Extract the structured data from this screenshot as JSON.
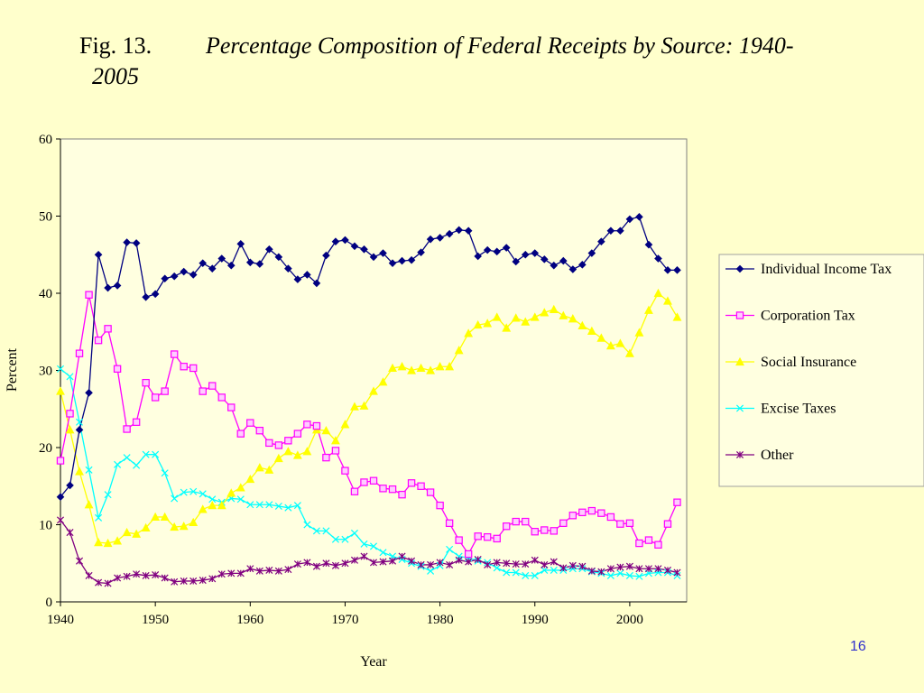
{
  "title": {
    "fig_label": "Fig. 13.",
    "line1": "Percentage Composition of Federal Receipts by Source:  1940-",
    "line2": "2005"
  },
  "slide_number": "16",
  "chart_data": {
    "type": "line",
    "xlabel": "Year",
    "ylabel": "Percent",
    "xlim": [
      1940,
      2006
    ],
    "ylim": [
      0,
      60
    ],
    "x_ticks": [
      1940,
      1950,
      1960,
      1970,
      1980,
      1990,
      2000
    ],
    "y_ticks": [
      0,
      10,
      20,
      30,
      40,
      50,
      60
    ],
    "grid": false,
    "legend_position": "right",
    "x": [
      1940,
      1941,
      1942,
      1943,
      1944,
      1945,
      1946,
      1947,
      1948,
      1949,
      1950,
      1951,
      1952,
      1953,
      1954,
      1955,
      1956,
      1957,
      1958,
      1959,
      1960,
      1961,
      1962,
      1963,
      1964,
      1965,
      1966,
      1967,
      1968,
      1969,
      1970,
      1971,
      1972,
      1973,
      1974,
      1975,
      1976,
      1977,
      1978,
      1979,
      1980,
      1981,
      1982,
      1983,
      1984,
      1985,
      1986,
      1987,
      1988,
      1989,
      1990,
      1991,
      1992,
      1993,
      1994,
      1995,
      1996,
      1997,
      1998,
      1999,
      2000,
      2001,
      2002,
      2003,
      2004,
      2005
    ],
    "series": [
      {
        "name": "Individual Income Tax",
        "color": "#000080",
        "marker": "diamond",
        "values": [
          13.6,
          15.1,
          22.3,
          27.1,
          45.0,
          40.7,
          41.0,
          46.6,
          46.5,
          39.5,
          39.9,
          41.9,
          42.2,
          42.8,
          42.4,
          43.9,
          43.2,
          44.5,
          43.6,
          46.4,
          44.0,
          43.8,
          45.7,
          44.7,
          43.2,
          41.8,
          42.4,
          41.3,
          44.9,
          46.7,
          46.9,
          46.1,
          45.7,
          44.7,
          45.2,
          43.9,
          44.2,
          44.3,
          45.3,
          47.0,
          47.2,
          47.7,
          48.2,
          48.1,
          44.8,
          45.6,
          45.4,
          45.9,
          44.1,
          45.0,
          45.2,
          44.4,
          43.6,
          44.2,
          43.1,
          43.7,
          45.2,
          46.7,
          48.1,
          48.1,
          49.6,
          49.9,
          46.3,
          44.5,
          43.0,
          43.0
        ]
      },
      {
        "name": "Corporation Tax",
        "color": "#ff00ff",
        "marker": "square",
        "values": [
          18.3,
          24.4,
          32.2,
          39.8,
          33.9,
          35.4,
          30.2,
          22.4,
          23.3,
          28.4,
          26.5,
          27.3,
          32.1,
          30.5,
          30.3,
          27.3,
          28.0,
          26.5,
          25.2,
          21.8,
          23.2,
          22.2,
          20.6,
          20.3,
          20.9,
          21.8,
          23.0,
          22.8,
          18.7,
          19.6,
          17.0,
          14.3,
          15.5,
          15.7,
          14.7,
          14.6,
          13.9,
          15.4,
          15.0,
          14.2,
          12.5,
          10.2,
          8.0,
          6.2,
          8.5,
          8.4,
          8.2,
          9.8,
          10.4,
          10.4,
          9.1,
          9.3,
          9.2,
          10.2,
          11.2,
          11.6,
          11.8,
          11.5,
          11.0,
          10.1,
          10.2,
          7.6,
          8.0,
          7.4,
          10.1,
          12.9
        ]
      },
      {
        "name": "Social Insurance",
        "color": "#ffff00",
        "marker": "triangle",
        "values": [
          27.3,
          22.3,
          16.9,
          12.6,
          7.7,
          7.6,
          7.9,
          9.0,
          8.8,
          9.6,
          11.0,
          11.0,
          9.7,
          9.8,
          10.3,
          12.0,
          12.5,
          12.5,
          14.1,
          14.8,
          15.9,
          17.4,
          17.1,
          18.6,
          19.5,
          19.0,
          19.5,
          22.3,
          22.2,
          20.9,
          23.0,
          25.3,
          25.4,
          27.3,
          28.5,
          30.3,
          30.5,
          30.0,
          30.3,
          30.0,
          30.5,
          30.5,
          32.6,
          34.8,
          35.9,
          36.1,
          36.9,
          35.5,
          36.8,
          36.3,
          36.9,
          37.5,
          37.9,
          37.1,
          36.7,
          35.8,
          35.1,
          34.2,
          33.2,
          33.5,
          32.2,
          34.9,
          37.8,
          40.0,
          39.0,
          36.9
        ]
      },
      {
        "name": "Excise Taxes",
        "color": "#00ffff",
        "marker": "x",
        "values": [
          30.2,
          29.2,
          23.3,
          17.1,
          10.9,
          13.9,
          17.8,
          18.7,
          17.7,
          19.1,
          19.1,
          16.7,
          13.4,
          14.2,
          14.3,
          14.0,
          13.3,
          12.9,
          13.4,
          13.3,
          12.6,
          12.6,
          12.6,
          12.4,
          12.2,
          12.5,
          10.0,
          9.2,
          9.2,
          8.1,
          8.1,
          8.9,
          7.5,
          7.2,
          6.4,
          5.9,
          5.5,
          5.0,
          4.6,
          4.0,
          4.7,
          6.8,
          5.9,
          5.7,
          5.3,
          5.1,
          4.4,
          3.8,
          3.8,
          3.4,
          3.4,
          4.1,
          4.1,
          4.1,
          4.3,
          4.3,
          3.9,
          3.7,
          3.4,
          3.7,
          3.4,
          3.3,
          3.7,
          3.8,
          3.8,
          3.4
        ]
      },
      {
        "name": "Other",
        "color": "#800080",
        "marker": "asterisk",
        "values": [
          10.6,
          9.0,
          5.3,
          3.4,
          2.5,
          2.4,
          3.1,
          3.3,
          3.6,
          3.4,
          3.5,
          3.1,
          2.6,
          2.7,
          2.7,
          2.8,
          3.0,
          3.6,
          3.7,
          3.7,
          4.3,
          4.0,
          4.1,
          4.0,
          4.2,
          4.9,
          5.1,
          4.6,
          5.0,
          4.7,
          5.0,
          5.4,
          5.9,
          5.1,
          5.2,
          5.3,
          5.9,
          5.3,
          4.8,
          4.8,
          5.1,
          4.8,
          5.4,
          5.2,
          5.5,
          4.8,
          5.1,
          5.0,
          4.9,
          4.9,
          5.4,
          4.8,
          5.2,
          4.4,
          4.7,
          4.6,
          4.0,
          3.9,
          4.3,
          4.5,
          4.6,
          4.3,
          4.3,
          4.3,
          4.1,
          3.8
        ]
      }
    ]
  }
}
